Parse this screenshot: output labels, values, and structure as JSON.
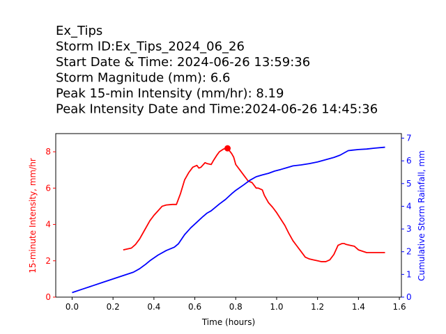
{
  "chart_data": {
    "type": "line",
    "title_lines": [
      "Ex_Tips",
      "Storm ID:Ex_Tips_2024_06_26",
      "Start Date & Time: 2024-06-26 13:59:36",
      "Storm Magnitude (mm): 6.6",
      "Peak 15-min Intensity (mm/hr): 8.19",
      "Peak Intensity Date and Time:2024-06-26 14:45:36"
    ],
    "xlabel": "Time (hours)",
    "ylabel_left": "15-minute Intensity, mm/hr",
    "ylabel_right": "Cumulative Storm Rainfall, mm",
    "xlim": [
      -0.08,
      1.61
    ],
    "ylim_left": [
      0,
      9
    ],
    "ylim_right": [
      0,
      7.2
    ],
    "xticks": [
      "0.0",
      "0.2",
      "0.4",
      "0.6",
      "0.8",
      "1.0",
      "1.2",
      "1.4",
      "1.6"
    ],
    "yticks_left": [
      "0",
      "2",
      "4",
      "6",
      "8"
    ],
    "yticks_right": [
      "0",
      "1",
      "2",
      "3",
      "4",
      "5",
      "6",
      "7"
    ],
    "grid": false,
    "colors": {
      "intensity": "#ff0000",
      "cumulative": "#0000ff",
      "axis": "#000000"
    },
    "series": [
      {
        "axis": "left",
        "color": "#ff0000",
        "x": [
          0.25,
          0.29,
          0.31,
          0.33,
          0.35,
          0.37,
          0.38,
          0.4,
          0.42,
          0.44,
          0.46,
          0.49,
          0.51,
          0.53,
          0.55,
          0.57,
          0.59,
          0.61,
          0.62,
          0.63,
          0.65,
          0.66,
          0.68,
          0.69,
          0.71,
          0.72,
          0.74,
          0.76,
          0.78,
          0.79,
          0.8,
          0.82,
          0.84,
          0.86,
          0.88,
          0.9,
          0.91,
          0.93,
          0.94,
          0.96,
          0.98,
          1.0,
          1.02,
          1.04,
          1.06,
          1.08,
          1.1,
          1.12,
          1.14,
          1.16,
          1.18,
          1.2,
          1.22,
          1.24,
          1.26,
          1.28,
          1.3,
          1.32,
          1.33,
          1.34,
          1.36,
          1.38,
          1.4,
          1.44,
          1.48,
          1.53
        ],
        "y": [
          2.6,
          2.7,
          2.9,
          3.2,
          3.6,
          4.0,
          4.2,
          4.5,
          4.75,
          5.0,
          5.07,
          5.1,
          5.1,
          5.7,
          6.45,
          6.85,
          7.15,
          7.25,
          7.1,
          7.15,
          7.4,
          7.35,
          7.3,
          7.5,
          7.85,
          8.0,
          8.15,
          8.19,
          7.9,
          7.7,
          7.3,
          7.0,
          6.7,
          6.4,
          6.3,
          6.0,
          6.0,
          5.9,
          5.6,
          5.2,
          4.95,
          4.65,
          4.3,
          3.95,
          3.5,
          3.1,
          2.8,
          2.5,
          2.2,
          2.1,
          2.05,
          2.0,
          1.95,
          1.95,
          2.05,
          2.35,
          2.85,
          2.95,
          2.95,
          2.9,
          2.85,
          2.8,
          2.6,
          2.45,
          2.45,
          2.45
        ]
      },
      {
        "axis": "right",
        "color": "#0000ff",
        "x": [
          0.0,
          0.05,
          0.1,
          0.15,
          0.2,
          0.25,
          0.3,
          0.33,
          0.36,
          0.38,
          0.42,
          0.46,
          0.5,
          0.52,
          0.55,
          0.58,
          0.61,
          0.64,
          0.66,
          0.68,
          0.7,
          0.72,
          0.75,
          0.78,
          0.8,
          0.84,
          0.87,
          0.9,
          0.93,
          0.96,
          0.99,
          1.02,
          1.05,
          1.08,
          1.12,
          1.16,
          1.2,
          1.24,
          1.28,
          1.31,
          1.33,
          1.35,
          1.37,
          1.4,
          1.44,
          1.48,
          1.53
        ],
        "y": [
          0.2,
          0.35,
          0.5,
          0.65,
          0.8,
          0.95,
          1.1,
          1.25,
          1.45,
          1.6,
          1.85,
          2.05,
          2.2,
          2.35,
          2.75,
          3.05,
          3.3,
          3.55,
          3.7,
          3.8,
          3.95,
          4.1,
          4.3,
          4.55,
          4.7,
          4.95,
          5.15,
          5.3,
          5.38,
          5.45,
          5.55,
          5.62,
          5.7,
          5.78,
          5.82,
          5.88,
          5.95,
          6.05,
          6.15,
          6.25,
          6.35,
          6.45,
          6.47,
          6.5,
          6.52,
          6.56,
          6.6
        ]
      }
    ],
    "peak_marker": {
      "x": 0.76,
      "y": 8.19
    }
  }
}
